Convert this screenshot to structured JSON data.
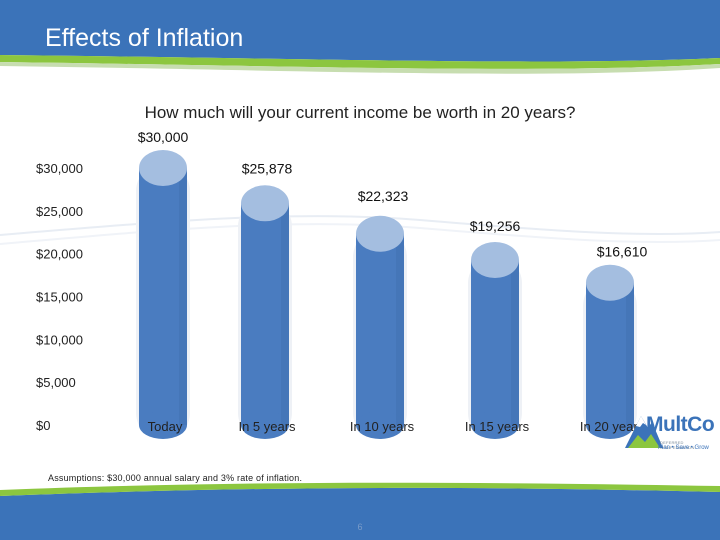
{
  "slide": {
    "title": "Effects of Inflation",
    "question": "How much will your current income be worth in 20 years?",
    "assumptions": "Assumptions: $30,000 annual salary and 3% rate of inflation.",
    "page_number": "6"
  },
  "logo": {
    "name": "MultCo",
    "subtitle": "DEFERRED COMPENSATION",
    "tagline": "Plan • Save • Grow"
  },
  "colors": {
    "header_blue": "#3b73b9",
    "header_green": "#8cc63f",
    "bar_body": "#4a7cc0",
    "bar_top": "#a4bee0",
    "bar_track": "#eef1f6"
  },
  "chart_data": {
    "type": "bar",
    "title": "",
    "categories": [
      "Today",
      "In 5 years",
      "In 10 years",
      "In 15 years",
      "In 20 years"
    ],
    "values": [
      30000,
      25878,
      22323,
      19256,
      16610
    ],
    "data_labels": [
      "$30,000",
      "$25,878",
      "$22,323",
      "$19,256",
      "$16,610"
    ],
    "y_ticks": [
      0,
      5000,
      10000,
      15000,
      20000,
      25000,
      30000
    ],
    "y_tick_labels": [
      "$0",
      "$5,000",
      "$10,000",
      "$15,000",
      "$20,000",
      "$25,000",
      "$30,000"
    ],
    "ylim": [
      0,
      30000
    ],
    "grid": false,
    "legend": "none",
    "bar_style": "cylinder"
  }
}
